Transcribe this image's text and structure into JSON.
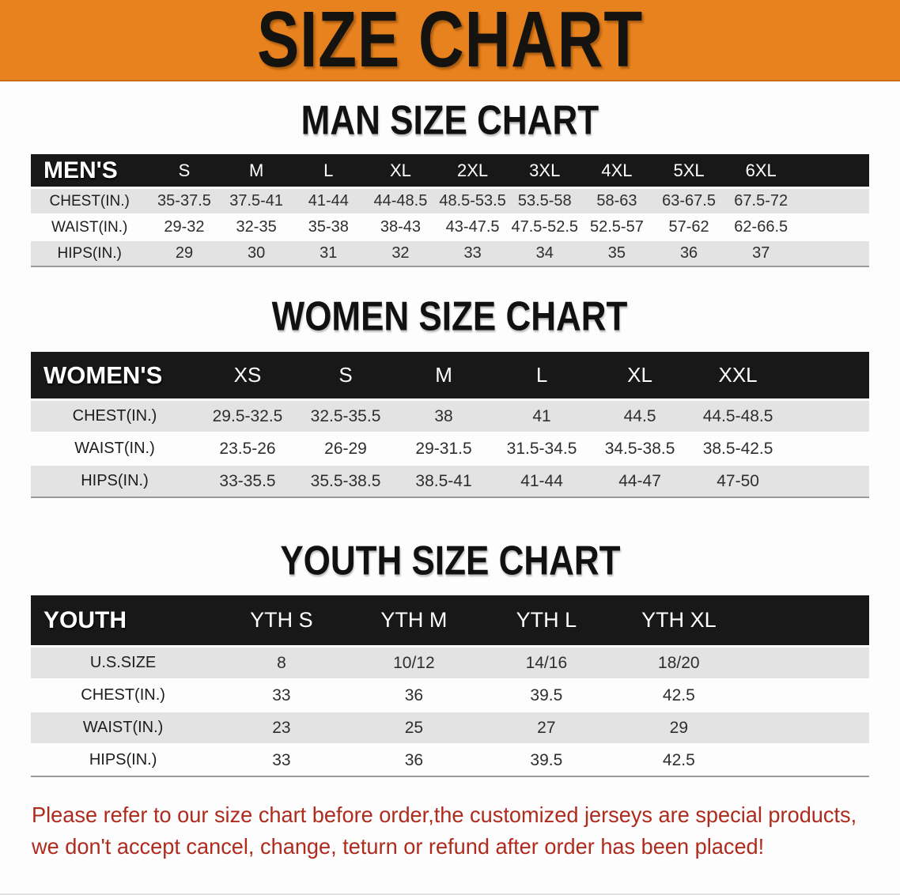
{
  "banner": {
    "title": "SIZE CHART",
    "bg_color": "#E8821E"
  },
  "sections": [
    {
      "heading": "MAN SIZE CHART",
      "label": "MEN'S",
      "columns": [
        "S",
        "M",
        "L",
        "XL",
        "2XL",
        "3XL",
        "4XL",
        "5XL",
        "6XL"
      ],
      "rows": [
        {
          "label": "CHEST(IN.)",
          "values": [
            "35-37.5",
            "37.5-41",
            "41-44",
            "44-48.5",
            "48.5-53.5",
            "53.5-58",
            "58-63",
            "63-67.5",
            "67.5-72"
          ]
        },
        {
          "label": "WAIST(IN.)",
          "values": [
            "29-32",
            "32-35",
            "35-38",
            "38-43",
            "43-47.5",
            "47.5-52.5",
            "52.5-57",
            "57-62",
            "62-66.5"
          ]
        },
        {
          "label": "HIPS(IN.)",
          "values": [
            "29",
            "30",
            "31",
            "32",
            "33",
            "34",
            "35",
            "36",
            "37"
          ]
        }
      ]
    },
    {
      "heading": "WOMEN SIZE CHART",
      "label": "WOMEN'S",
      "columns": [
        "XS",
        "S",
        "M",
        "L",
        "XL",
        "XXL"
      ],
      "rows": [
        {
          "label": "CHEST(IN.)",
          "values": [
            "29.5-32.5",
            "32.5-35.5",
            "38",
            "41",
            "44.5",
            "44.5-48.5"
          ]
        },
        {
          "label": "WAIST(IN.)",
          "values": [
            "23.5-26",
            "26-29",
            "29-31.5",
            "31.5-34.5",
            "34.5-38.5",
            "38.5-42.5"
          ]
        },
        {
          "label": "HIPS(IN.)",
          "values": [
            "33-35.5",
            "35.5-38.5",
            "38.5-41",
            "41-44",
            "44-47",
            "47-50"
          ]
        }
      ]
    },
    {
      "heading": "YOUTH SIZE CHART",
      "label": "YOUTH",
      "columns": [
        "YTH S",
        "YTH M",
        "YTH L",
        "YTH XL"
      ],
      "rows": [
        {
          "label": "U.S.SIZE",
          "values": [
            "8",
            "10/12",
            "14/16",
            "18/20"
          ]
        },
        {
          "label": "CHEST(IN.)",
          "values": [
            "33",
            "36",
            "39.5",
            "42.5"
          ]
        },
        {
          "label": "WAIST(IN.)",
          "values": [
            "23",
            "25",
            "27",
            "29"
          ]
        },
        {
          "label": "HIPS(IN.)",
          "values": [
            "33",
            "36",
            "39.5",
            "42.5"
          ]
        }
      ]
    }
  ],
  "disclaimer": {
    "line1": "Please refer to our size chart before order,the customized jerseys are special products,",
    "line2": "we don't accept cancel, change, teturn or refund after order has been placed!",
    "color": "#AF2B1E"
  }
}
